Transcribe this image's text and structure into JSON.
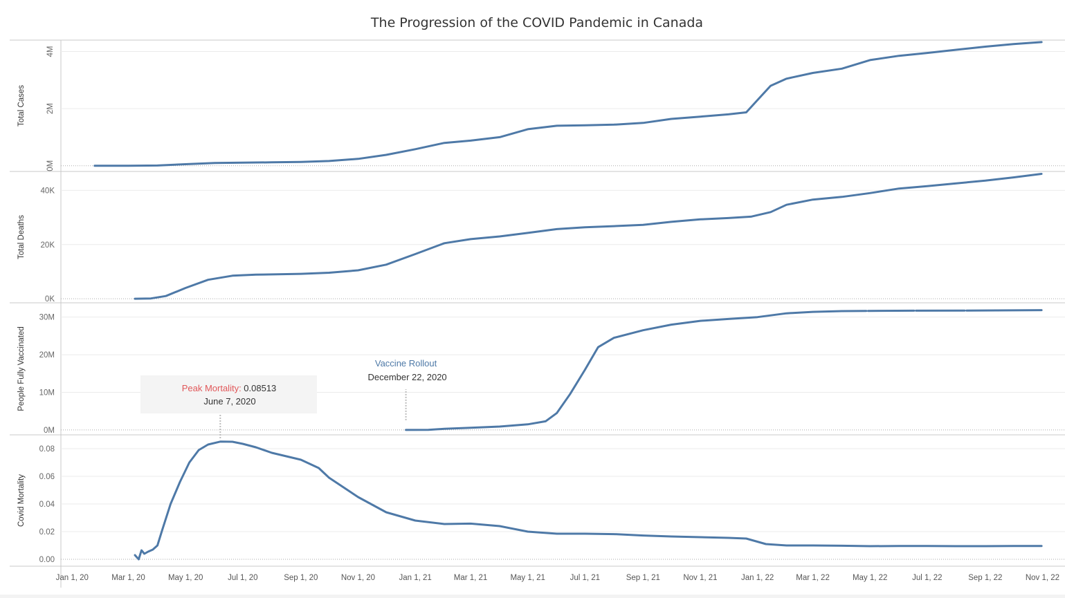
{
  "title": "The Progression of the COVID Pandemic in Canada",
  "colors": {
    "line": "#4e79a7",
    "peak_label": "#e15759",
    "rollout_label": "#4e79a7",
    "gridline": "#ebebeb",
    "divider": "#c8c8c8",
    "zeroline": "#aaaaaa"
  },
  "chart_data": {
    "type": "line",
    "x_axis": {
      "type": "date",
      "range": [
        "2019-12-20",
        "2022-11-25"
      ],
      "ticks": [
        {
          "date": "2020-01-01",
          "label": "Jan 1, 20"
        },
        {
          "date": "2020-03-01",
          "label": "Mar 1, 20"
        },
        {
          "date": "2020-05-01",
          "label": "May 1, 20"
        },
        {
          "date": "2020-07-01",
          "label": "Jul 1, 20"
        },
        {
          "date": "2020-09-01",
          "label": "Sep 1, 20"
        },
        {
          "date": "2020-11-01",
          "label": "Nov 1, 20"
        },
        {
          "date": "2021-01-01",
          "label": "Jan 1, 21"
        },
        {
          "date": "2021-03-01",
          "label": "Mar 1, 21"
        },
        {
          "date": "2021-05-01",
          "label": "May 1, 21"
        },
        {
          "date": "2021-07-01",
          "label": "Jul 1, 21"
        },
        {
          "date": "2021-09-01",
          "label": "Sep 1, 21"
        },
        {
          "date": "2021-11-01",
          "label": "Nov 1, 21"
        },
        {
          "date": "2022-01-01",
          "label": "Jan 1, 22"
        },
        {
          "date": "2022-03-01",
          "label": "Mar 1, 22"
        },
        {
          "date": "2022-05-01",
          "label": "May 1, 22"
        },
        {
          "date": "2022-07-01",
          "label": "Jul 1, 22"
        },
        {
          "date": "2022-09-01",
          "label": "Sep 1, 22"
        },
        {
          "date": "2022-11-01",
          "label": "Nov 1, 22"
        }
      ]
    },
    "grid": true,
    "panels": [
      {
        "id": "total-cases",
        "ylabel": "Total Cases",
        "ylim": [
          -200000,
          4400000
        ],
        "rotated_tick_labels": true,
        "yticks": [
          {
            "value": 0,
            "label": "0M"
          },
          {
            "value": 2000000,
            "label": "2M"
          },
          {
            "value": 4000000,
            "label": "4M"
          }
        ],
        "series": [
          {
            "points": [
              [
                "2020-01-25",
                0
              ],
              [
                "2020-03-01",
                1000
              ],
              [
                "2020-04-01",
                8000
              ],
              [
                "2020-05-01",
                55000
              ],
              [
                "2020-06-01",
                95000
              ],
              [
                "2020-07-01",
                108000
              ],
              [
                "2020-08-01",
                120000
              ],
              [
                "2020-09-01",
                133000
              ],
              [
                "2020-10-01",
                165000
              ],
              [
                "2020-11-01",
                240000
              ],
              [
                "2020-12-01",
                380000
              ],
              [
                "2021-01-01",
                580000
              ],
              [
                "2021-02-01",
                800000
              ],
              [
                "2021-03-01",
                880000
              ],
              [
                "2021-04-01",
                1000000
              ],
              [
                "2021-05-01",
                1280000
              ],
              [
                "2021-06-01",
                1400000
              ],
              [
                "2021-07-01",
                1415000
              ],
              [
                "2021-08-01",
                1440000
              ],
              [
                "2021-09-01",
                1500000
              ],
              [
                "2021-10-01",
                1640000
              ],
              [
                "2021-11-01",
                1720000
              ],
              [
                "2021-12-01",
                1800000
              ],
              [
                "2021-12-20",
                1870000
              ],
              [
                "2022-01-01",
                2300000
              ],
              [
                "2022-01-15",
                2800000
              ],
              [
                "2022-02-01",
                3050000
              ],
              [
                "2022-03-01",
                3250000
              ],
              [
                "2022-04-01",
                3400000
              ],
              [
                "2022-05-01",
                3700000
              ],
              [
                "2022-06-01",
                3850000
              ],
              [
                "2022-07-01",
                3950000
              ],
              [
                "2022-08-01",
                4060000
              ],
              [
                "2022-09-01",
                4170000
              ],
              [
                "2022-10-01",
                4260000
              ],
              [
                "2022-10-31",
                4330000
              ]
            ]
          }
        ]
      },
      {
        "id": "total-deaths",
        "ylabel": "Total Deaths",
        "ylim": [
          -1500,
          47000
        ],
        "rotated_tick_labels": false,
        "yticks": [
          {
            "value": 0,
            "label": "0K"
          },
          {
            "value": 20000,
            "label": "20K"
          },
          {
            "value": 40000,
            "label": "40K"
          }
        ],
        "series": [
          {
            "points": [
              [
                "2020-03-08",
                0
              ],
              [
                "2020-03-25",
                100
              ],
              [
                "2020-04-10",
                1000
              ],
              [
                "2020-05-01",
                4000
              ],
              [
                "2020-05-25",
                7000
              ],
              [
                "2020-06-20",
                8500
              ],
              [
                "2020-07-15",
                8900
              ],
              [
                "2020-09-01",
                9200
              ],
              [
                "2020-10-01",
                9600
              ],
              [
                "2020-11-01",
                10500
              ],
              [
                "2020-12-01",
                12600
              ],
              [
                "2021-01-01",
                16500
              ],
              [
                "2021-02-01",
                20500
              ],
              [
                "2021-03-01",
                22000
              ],
              [
                "2021-04-01",
                23000
              ],
              [
                "2021-05-01",
                24300
              ],
              [
                "2021-06-01",
                25700
              ],
              [
                "2021-07-01",
                26400
              ],
              [
                "2021-08-01",
                26800
              ],
              [
                "2021-09-01",
                27300
              ],
              [
                "2021-10-01",
                28400
              ],
              [
                "2021-11-01",
                29300
              ],
              [
                "2021-12-01",
                29800
              ],
              [
                "2021-12-25",
                30300
              ],
              [
                "2022-01-15",
                32000
              ],
              [
                "2022-02-01",
                34700
              ],
              [
                "2022-03-01",
                36600
              ],
              [
                "2022-04-01",
                37600
              ],
              [
                "2022-05-01",
                39000
              ],
              [
                "2022-06-01",
                40700
              ],
              [
                "2022-07-01",
                41600
              ],
              [
                "2022-08-01",
                42600
              ],
              [
                "2022-09-01",
                43600
              ],
              [
                "2022-10-01",
                44800
              ],
              [
                "2022-10-31",
                46100
              ]
            ]
          }
        ]
      },
      {
        "id": "people-fully-vaccinated",
        "ylabel": "People Fully Vaccinated",
        "ylim": [
          -1300000,
          33800000
        ],
        "rotated_tick_labels": false,
        "yticks": [
          {
            "value": 0,
            "label": "0M"
          },
          {
            "value": 10000000,
            "label": "10M"
          },
          {
            "value": 20000000,
            "label": "20M"
          },
          {
            "value": 30000000,
            "label": "30M"
          }
        ],
        "series": [
          {
            "points": [
              [
                "2020-12-22",
                0
              ],
              [
                "2021-01-15",
                50000
              ],
              [
                "2021-02-01",
                300000
              ],
              [
                "2021-03-01",
                600000
              ],
              [
                "2021-04-01",
                900000
              ],
              [
                "2021-05-01",
                1500000
              ],
              [
                "2021-05-20",
                2300000
              ],
              [
                "2021-06-01",
                4500000
              ],
              [
                "2021-06-15",
                9500000
              ],
              [
                "2021-07-01",
                16000000
              ],
              [
                "2021-07-15",
                22000000
              ],
              [
                "2021-08-01",
                24500000
              ],
              [
                "2021-09-01",
                26500000
              ],
              [
                "2021-10-01",
                28000000
              ],
              [
                "2021-11-01",
                29000000
              ],
              [
                "2021-12-01",
                29500000
              ],
              [
                "2022-01-01",
                30000000
              ],
              [
                "2022-02-01",
                31000000
              ],
              [
                "2022-03-01",
                31400000
              ],
              [
                "2022-04-01",
                31600000
              ],
              [
                "2022-04-27",
                31650000
              ]
            ]
          },
          {
            "points": [
              [
                "2022-04-29",
                31650000
              ],
              [
                "2022-06-17",
                31700000
              ]
            ]
          },
          {
            "points": [
              [
                "2022-06-19",
                31700000
              ],
              [
                "2022-08-10",
                31750000
              ]
            ]
          },
          {
            "points": [
              [
                "2022-08-12",
                31750000
              ],
              [
                "2022-10-31",
                31850000
              ]
            ]
          }
        ]
      },
      {
        "id": "covid-mortality",
        "ylabel": "Covid Mortality",
        "ylim": [
          -0.005,
          0.09
        ],
        "rotated_tick_labels": false,
        "yticks": [
          {
            "value": 0.0,
            "label": "0.00"
          },
          {
            "value": 0.02,
            "label": "0.02"
          },
          {
            "value": 0.04,
            "label": "0.04"
          },
          {
            "value": 0.06,
            "label": "0.06"
          },
          {
            "value": 0.08,
            "label": "0.08"
          }
        ],
        "series": [
          {
            "points": [
              [
                "2020-03-08",
                0.003
              ],
              [
                "2020-03-12",
                0.0
              ],
              [
                "2020-03-15",
                0.0065
              ],
              [
                "2020-03-18",
                0.004
              ],
              [
                "2020-03-22",
                0.0055
              ],
              [
                "2020-03-27",
                0.007
              ],
              [
                "2020-04-01",
                0.01
              ],
              [
                "2020-04-06",
                0.021
              ],
              [
                "2020-04-15",
                0.04
              ],
              [
                "2020-04-25",
                0.056
              ],
              [
                "2020-05-05",
                0.07
              ],
              [
                "2020-05-15",
                0.079
              ],
              [
                "2020-05-25",
                0.083
              ],
              [
                "2020-06-07",
                0.0851
              ],
              [
                "2020-06-20",
                0.085
              ],
              [
                "2020-07-01",
                0.0835
              ],
              [
                "2020-07-15",
                0.081
              ],
              [
                "2020-08-01",
                0.077
              ],
              [
                "2020-09-01",
                0.072
              ],
              [
                "2020-09-20",
                0.066
              ],
              [
                "2020-10-01",
                0.059
              ],
              [
                "2020-11-01",
                0.045
              ],
              [
                "2020-12-01",
                0.034
              ],
              [
                "2021-01-01",
                0.028
              ],
              [
                "2021-02-01",
                0.0255
              ],
              [
                "2021-03-01",
                0.0258
              ],
              [
                "2021-04-01",
                0.024
              ],
              [
                "2021-05-01",
                0.02
              ],
              [
                "2021-06-01",
                0.0185
              ],
              [
                "2021-07-01",
                0.0185
              ],
              [
                "2021-08-01",
                0.0182
              ],
              [
                "2021-09-01",
                0.0172
              ],
              [
                "2021-10-01",
                0.0165
              ],
              [
                "2021-11-01",
                0.016
              ],
              [
                "2021-12-01",
                0.0155
              ],
              [
                "2021-12-20",
                0.015
              ],
              [
                "2022-01-10",
                0.011
              ],
              [
                "2022-02-01",
                0.01
              ],
              [
                "2022-03-01",
                0.01
              ],
              [
                "2022-04-01",
                0.0098
              ],
              [
                "2022-05-01",
                0.0095
              ],
              [
                "2022-06-01",
                0.0096
              ],
              [
                "2022-07-01",
                0.0096
              ],
              [
                "2022-08-01",
                0.0095
              ],
              [
                "2022-09-01",
                0.0095
              ],
              [
                "2022-10-01",
                0.0096
              ],
              [
                "2022-10-31",
                0.0096
              ]
            ]
          }
        ]
      }
    ],
    "annotations": [
      {
        "id": "vaccine-rollout",
        "panel": "people-fully-vaccinated",
        "title": "Vaccine Rollout",
        "date_label": "December 22, 2020",
        "x": "2020-12-22",
        "y": 0
      },
      {
        "id": "peak-mortality",
        "panel": "covid-mortality",
        "title": "Peak Mortality:",
        "value": "0.08513",
        "date_label": "June 7, 2020",
        "x": "2020-06-07",
        "y": 0.08513
      }
    ]
  }
}
